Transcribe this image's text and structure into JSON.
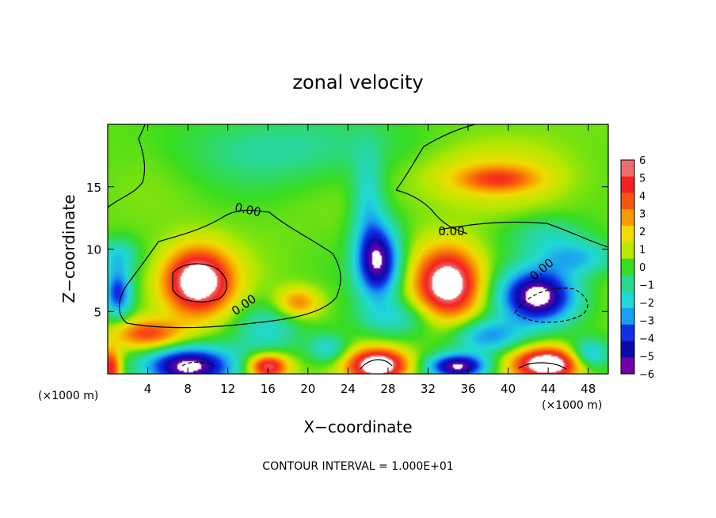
{
  "chart_data": {
    "type": "heatmap",
    "title": "zonal velocity",
    "xlabel": "X−coordinate",
    "ylabel": "Z−coordinate",
    "x_unit_left": "(×1000 m)",
    "x_unit_right": "(×1000 m)",
    "footer": "CONTOUR INTERVAL = 1.000E+01",
    "xlim": [
      0,
      50
    ],
    "ylim": [
      0,
      20
    ],
    "xticks": [
      4,
      8,
      12,
      16,
      20,
      24,
      28,
      32,
      36,
      40,
      44,
      48
    ],
    "yticks": [
      5,
      10,
      15
    ],
    "colorbar": {
      "min": -6,
      "max": 6,
      "labels": [
        "6",
        "5",
        "4",
        "3",
        "2",
        "1",
        "0",
        "−1",
        "−2",
        "−3",
        "−4",
        "−5",
        "−6"
      ],
      "colors": [
        "#ee6e6e",
        "#f52020",
        "#f85510",
        "#f89a00",
        "#f0dc00",
        "#b8e800",
        "#38dc20",
        "#2ad890",
        "#20d8d8",
        "#1aa0f0",
        "#1030e8",
        "#0a0aaa",
        "#7000a8"
      ]
    },
    "contour_label": "0.00",
    "blobs": [
      {
        "x": 19,
        "z": 18,
        "sx": 12,
        "sz": 3,
        "v": -1.6
      },
      {
        "x": 37,
        "z": 16,
        "sx": 9,
        "sz": 2.6,
        "v": 1.5
      },
      {
        "x": 39,
        "z": 15.6,
        "sx": 4,
        "sz": 1.0,
        "v": 2.8
      },
      {
        "x": 26,
        "z": 14,
        "sx": 1.6,
        "sz": 3.8,
        "v": -2.2
      },
      {
        "x": 44,
        "z": 11.2,
        "sx": 4,
        "sz": 1.5,
        "v": -1.6
      },
      {
        "x": 47,
        "z": 9.3,
        "sx": 4,
        "sz": 1.4,
        "v": -2.8
      },
      {
        "x": 1,
        "z": 9.5,
        "sx": 2,
        "sz": 1.4,
        "v": -2.2
      },
      {
        "x": 9,
        "z": 7.4,
        "sx": 3.4,
        "sz": 2.6,
        "v": 7.5
      },
      {
        "x": 1,
        "z": 6.5,
        "sx": 1.4,
        "sz": 2.0,
        "v": -4.5
      },
      {
        "x": 19,
        "z": 5.7,
        "sx": 2.2,
        "sz": 1.2,
        "v": 3.2
      },
      {
        "x": 16,
        "z": 3.6,
        "sx": 3.4,
        "sz": 2.2,
        "v": -2.2
      },
      {
        "x": 27,
        "z": 9.0,
        "sx": 2.2,
        "sz": 3.0,
        "v": -6.5
      },
      {
        "x": 34,
        "z": 7.2,
        "sx": 3.2,
        "sz": 2.8,
        "v": 7.0
      },
      {
        "x": 29,
        "z": 4.5,
        "sx": 4.0,
        "sz": 1.5,
        "v": -2.0
      },
      {
        "x": 43,
        "z": 6.2,
        "sx": 3.8,
        "sz": 2.2,
        "v": -7.0
      },
      {
        "x": 38,
        "z": 3.0,
        "sx": 3.5,
        "sz": 1.4,
        "v": -3.5
      },
      {
        "x": 8,
        "z": 0.6,
        "sx": 4.5,
        "sz": 1.6,
        "v": -7.0
      },
      {
        "x": 4,
        "z": 3.2,
        "sx": 3.5,
        "sz": 1.2,
        "v": 4.0
      },
      {
        "x": 16,
        "z": 0.6,
        "sx": 2.0,
        "sz": 1.0,
        "v": 6.0
      },
      {
        "x": 27,
        "z": 0.7,
        "sx": 3.0,
        "sz": 1.3,
        "v": 7.5
      },
      {
        "x": 35,
        "z": 0.6,
        "sx": 3.0,
        "sz": 1.0,
        "v": -6.5
      },
      {
        "x": 44,
        "z": 0.8,
        "sx": 3.5,
        "sz": 1.3,
        "v": 7.5
      },
      {
        "x": 48,
        "z": 1.5,
        "sx": 2.0,
        "sz": 1.2,
        "v": -3.5
      },
      {
        "x": 0.3,
        "z": 0.5,
        "sx": 1.0,
        "sz": 1.5,
        "v": 5.0
      },
      {
        "x": 22,
        "z": 2.0,
        "sx": 2.0,
        "sz": 1.2,
        "v": -2.5
      }
    ]
  }
}
